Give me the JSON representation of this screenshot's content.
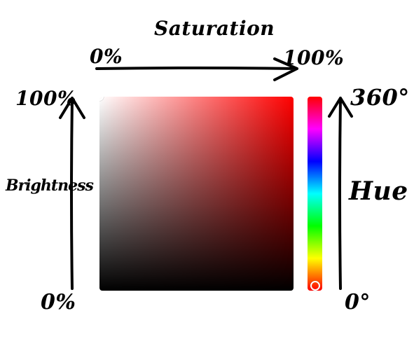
{
  "labels": {
    "saturation_title": "Saturation",
    "saturation_min": "0%",
    "saturation_max": "100%",
    "brightness_title": "Brightness",
    "brightness_max": "100%",
    "brightness_min": "0%",
    "hue_title": "Hue",
    "hue_max": "360°",
    "hue_min": "0°"
  },
  "picker": {
    "hue_degrees": 0,
    "saturation_percent": 0,
    "brightness_percent": 100
  },
  "colors": {
    "ink": "#000000",
    "handle": "#ffffff",
    "selected_hue_color": "#ff0000"
  }
}
